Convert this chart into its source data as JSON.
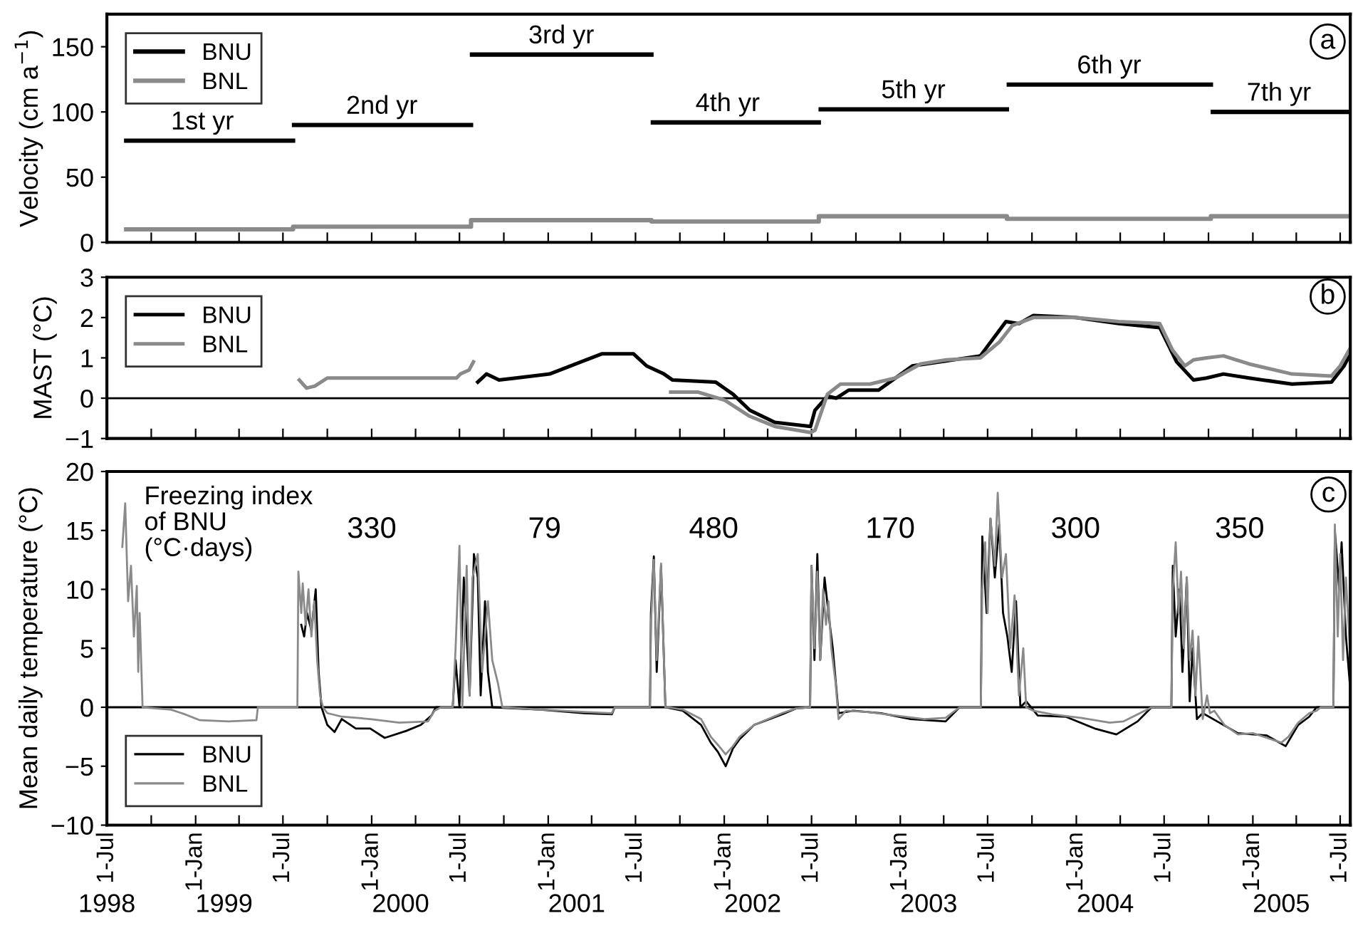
{
  "chart_data": [
    {
      "type": "line",
      "ylabel": "Velocity (cm a$^{−1}$)",
      "xlim": [
        "1998-07-01",
        "2005-07-22"
      ],
      "ylim": [
        0,
        175
      ],
      "yticks": [
        0,
        50,
        100,
        150
      ],
      "tick_labels": "y",
      "legend": "top left",
      "grid": false,
      "xticks": [
        {
          "value": "1998-07-01",
          "label": null
        },
        {
          "value": "1998-10-01",
          "label": null
        },
        {
          "value": "1999-01-01",
          "label": null
        },
        {
          "value": "1999-04-01",
          "label": null
        },
        {
          "value": "1999-07-01",
          "label": null
        },
        {
          "value": "1999-10-01",
          "label": null
        },
        {
          "value": "2000-01-01",
          "label": null
        },
        {
          "value": "2000-04-01",
          "label": null
        },
        {
          "value": "2000-07-01",
          "label": null
        },
        {
          "value": "2000-10-01",
          "label": null
        },
        {
          "value": "2001-01-01",
          "label": null
        },
        {
          "value": "2001-04-01",
          "label": null
        },
        {
          "value": "2001-07-01",
          "label": null
        },
        {
          "value": "2001-10-01",
          "label": null
        },
        {
          "value": "2002-01-01",
          "label": null
        },
        {
          "value": "2002-04-01",
          "label": null
        },
        {
          "value": "2002-07-01",
          "label": null
        },
        {
          "value": "2002-10-01",
          "label": null
        },
        {
          "value": "2003-01-01",
          "label": null
        },
        {
          "value": "2003-04-01",
          "label": null
        },
        {
          "value": "2003-07-01",
          "label": null
        },
        {
          "value": "2003-10-01",
          "label": null
        },
        {
          "value": "2004-01-01",
          "label": null
        },
        {
          "value": "2004-04-01",
          "label": null
        },
        {
          "value": "2004-07-01",
          "label": null
        },
        {
          "value": "2004-10-01",
          "label": null
        },
        {
          "value": "2005-01-01",
          "label": null
        },
        {
          "value": "2005-04-01",
          "label": null
        },
        {
          "value": "2005-07-01",
          "label": null
        }
      ],
      "series": [
        {
          "name": "BNU",
          "color": "#000000",
          "x": [
            "1998-08-10",
            "1999-07-22",
            "1999-07-23",
            "1999-07-24",
            "2000-07-25",
            "2000-07-26",
            "2000-07-27",
            "2001-08-03",
            "2001-08-04",
            "2001-08-06",
            "2002-07-16",
            "2002-07-18",
            "2002-07-20",
            "2003-08-10",
            "2003-08-12",
            "2003-08-14",
            "2004-10-06",
            "2004-10-08",
            "2004-10-10",
            "2005-07-22"
          ],
          "values": [
            78,
            78,
            null,
            90,
            90,
            null,
            144,
            144,
            null,
            92,
            92,
            null,
            102,
            102,
            null,
            121,
            121,
            null,
            100,
            100
          ]
        },
        {
          "name": "BNL",
          "color": "#8a8a8a",
          "x": [
            "1998-08-10",
            "1999-07-22",
            "1999-07-22",
            "2000-07-25",
            "2000-07-25",
            "2001-08-03",
            "2001-08-03",
            "2002-07-16",
            "2002-07-16",
            "2003-08-10",
            "2003-08-10",
            "2004-10-06",
            "2004-10-06",
            "2005-07-22"
          ],
          "values": [
            10,
            10,
            12,
            12,
            17,
            17,
            16,
            16,
            20,
            20,
            18,
            18,
            20,
            20
          ]
        }
      ],
      "annotations": [
        "a",
        {
          "text": "1st yr",
          "x": "1999-01-15",
          "y": 78
        },
        {
          "text": "2nd yr",
          "x": "2000-01-22",
          "y": 90
        },
        {
          "text": "3rd yr",
          "x": "2001-01-28",
          "y": 144
        },
        {
          "text": "4th yr",
          "x": "2002-01-08",
          "y": 92
        },
        {
          "text": "5th yr",
          "x": "2003-01-28",
          "y": 102
        },
        {
          "text": "6th yr",
          "x": "2004-03-09",
          "y": 121
        },
        {
          "text": "7th yr",
          "x": "2005-02-24",
          "y": 100
        }
      ]
    },
    {
      "type": "line",
      "ylabel": "MAST (°C)",
      "xlim": [
        "1998-07-01",
        "2005-07-22"
      ],
      "ylim": [
        -1,
        3
      ],
      "yticks": [
        {
          "value": -1,
          "label": "−1"
        },
        0,
        1,
        2,
        3
      ],
      "tick_labels": "y",
      "legend": "top left",
      "grid": false,
      "xticks": [
        {
          "value": "1998-07-01",
          "label": null
        },
        {
          "value": "1998-10-01",
          "label": null
        },
        {
          "value": "1999-01-01",
          "label": null
        },
        {
          "value": "1999-04-01",
          "label": null
        },
        {
          "value": "1999-07-01",
          "label": null
        },
        {
          "value": "1999-10-01",
          "label": null
        },
        {
          "value": "2000-01-01",
          "label": null
        },
        {
          "value": "2000-04-01",
          "label": null
        },
        {
          "value": "2000-07-01",
          "label": null
        },
        {
          "value": "2000-10-01",
          "label": null
        },
        {
          "value": "2001-01-01",
          "label": null
        },
        {
          "value": "2001-04-01",
          "label": null
        },
        {
          "value": "2001-07-01",
          "label": null
        },
        {
          "value": "2001-10-01",
          "label": null
        },
        {
          "value": "2002-01-01",
          "label": null
        },
        {
          "value": "2002-04-01",
          "label": null
        },
        {
          "value": "2002-07-01",
          "label": null
        },
        {
          "value": "2002-10-01",
          "label": null
        },
        {
          "value": "2003-01-01",
          "label": null
        },
        {
          "value": "2003-04-01",
          "label": null
        },
        {
          "value": "2003-07-01",
          "label": null
        },
        {
          "value": "2003-10-01",
          "label": null
        },
        {
          "value": "2004-01-01",
          "label": null
        },
        {
          "value": "2004-04-01",
          "label": null
        },
        {
          "value": "2004-07-01",
          "label": null
        },
        {
          "value": "2004-10-01",
          "label": null
        },
        {
          "value": "2005-01-01",
          "label": null
        },
        {
          "value": "2005-04-01",
          "label": null
        },
        {
          "value": "2005-07-01",
          "label": null
        }
      ],
      "ref_lines": [
        {
          "axis": "y",
          "value": 0,
          "color": "#000000"
        }
      ],
      "series": [
        {
          "name": "BNU",
          "color": "#000000",
          "x": [
            "2000-08-08",
            "2000-08-26",
            "2000-09-21",
            "2000-10-26",
            "2001-01-04",
            "2001-04-22",
            "2001-06-27",
            "2001-07-24",
            "2001-08-29",
            "2001-09-16",
            "2001-12-14",
            "2002-01-19",
            "2002-02-23",
            "2002-04-16",
            "2002-06-29",
            "2002-07-08",
            "2002-08-03",
            "2002-08-21",
            "2002-09-16",
            "2002-11-17",
            "2003-01-26",
            "2003-06-16",
            "2003-08-08",
            "2003-09-04",
            "2003-10-04",
            "2003-12-31",
            "2004-03-29",
            "2004-06-22",
            "2004-07-27",
            "2004-08-31",
            "2004-09-27",
            "2004-11-01",
            "2004-12-24",
            "2005-03-23",
            "2005-06-13",
            "2005-07-09",
            "2005-07-20"
          ],
          "values": [
            0.4,
            0.6,
            0.45,
            0.5,
            0.6,
            1.1,
            1.1,
            0.8,
            0.6,
            0.45,
            0.4,
            0.1,
            -0.3,
            -0.6,
            -0.7,
            -0.3,
            0.05,
            0.0,
            0.2,
            0.2,
            0.8,
            1.05,
            1.9,
            1.85,
            2.05,
            2.0,
            1.85,
            1.75,
            0.9,
            0.45,
            0.5,
            0.6,
            0.5,
            0.35,
            0.4,
            0.8,
            1.05
          ]
        },
        {
          "name": "BNL",
          "color": "#8a8a8a",
          "x": [
            "1999-08-04",
            "1999-08-19",
            "1999-09-05",
            "1999-10-01",
            "1999-11-05",
            "2000-06-25",
            "2000-07-03",
            "2000-07-21",
            "2000-07-30",
            "2000-08-15",
            "2001-09-12",
            "2001-11-08",
            "2002-01-02",
            "2002-02-23",
            "2002-04-16",
            "2002-06-29",
            "2002-07-08",
            "2002-08-03",
            "2002-08-30",
            "2002-10-30",
            "2002-12-22",
            "2003-02-12",
            "2003-04-06",
            "2003-06-16",
            "2003-07-26",
            "2003-08-21",
            "2003-10-04",
            "2003-12-31",
            "2004-03-29",
            "2004-06-22",
            "2004-07-18",
            "2004-08-13",
            "2004-08-31",
            "2004-09-27",
            "2004-11-01",
            "2004-12-24",
            "2005-03-23",
            "2005-06-13",
            "2005-07-01",
            "2005-07-20"
          ],
          "values": [
            0.45,
            0.25,
            0.3,
            0.5,
            0.5,
            0.5,
            0.6,
            0.7,
            0.9,
            null,
            0.15,
            0.15,
            -0.05,
            -0.45,
            -0.7,
            -0.85,
            -0.8,
            0.1,
            0.35,
            0.35,
            0.5,
            0.85,
            0.95,
            1.0,
            1.4,
            1.8,
            2.0,
            2.0,
            1.9,
            1.85,
            1.2,
            0.8,
            0.95,
            1.0,
            1.05,
            0.85,
            0.6,
            0.55,
            0.8,
            1.2
          ]
        }
      ],
      "annotations": [
        "b"
      ]
    },
    {
      "type": "line",
      "ylabel": "Mean daily temperature (°C)",
      "xlim": [
        "1998-07-01",
        "2005-07-22"
      ],
      "ylim": [
        -10,
        20
      ],
      "yticks": [
        {
          "value": -10,
          "label": "−10"
        },
        {
          "value": -5,
          "label": "−5"
        },
        0,
        5,
        10,
        15,
        20
      ],
      "legend": "bottom left",
      "grid": false,
      "xticks": [
        {
          "value": "1998-07-01",
          "label": "1-Jul"
        },
        {
          "value": "1998-10-01",
          "label": null
        },
        {
          "value": "1999-01-01",
          "label": "1-Jan"
        },
        {
          "value": "1999-04-01",
          "label": null
        },
        {
          "value": "1999-07-01",
          "label": "1-Jul"
        },
        {
          "value": "1999-10-01",
          "label": null
        },
        {
          "value": "2000-01-01",
          "label": "1-Jan"
        },
        {
          "value": "2000-04-01",
          "label": null
        },
        {
          "value": "2000-07-01",
          "label": "1-Jul"
        },
        {
          "value": "2000-10-01",
          "label": null
        },
        {
          "value": "2001-01-01",
          "label": "1-Jan"
        },
        {
          "value": "2001-04-01",
          "label": null
        },
        {
          "value": "2001-07-01",
          "label": "1-Jul"
        },
        {
          "value": "2001-10-01",
          "label": null
        },
        {
          "value": "2002-01-01",
          "label": "1-Jan"
        },
        {
          "value": "2002-04-01",
          "label": null
        },
        {
          "value": "2002-07-01",
          "label": "1-Jul"
        },
        {
          "value": "2002-10-01",
          "label": null
        },
        {
          "value": "2003-01-01",
          "label": "1-Jan"
        },
        {
          "value": "2003-04-01",
          "label": null
        },
        {
          "value": "2003-07-01",
          "label": "1-Jul"
        },
        {
          "value": "2003-10-01",
          "label": null
        },
        {
          "value": "2004-01-01",
          "label": "1-Jan"
        },
        {
          "value": "2004-04-01",
          "label": null
        },
        {
          "value": "2004-07-01",
          "label": "1-Jul"
        },
        {
          "value": "2004-10-01",
          "label": null
        },
        {
          "value": "2005-01-01",
          "label": "1-Jan"
        },
        {
          "value": "2005-04-01",
          "label": null
        },
        {
          "value": "2005-07-01",
          "label": "1-Jul"
        }
      ],
      "x2lim": [
        "1998-07-01",
        "2005-07-22"
      ],
      "x2ticks": [
        {
          "value": "1998-07-01",
          "label": "1998"
        },
        {
          "value": "1999-03-01",
          "label": "1999"
        },
        {
          "value": "2000-03-01",
          "label": "2000"
        },
        {
          "value": "2001-03-01",
          "label": "2001"
        },
        {
          "value": "2002-03-01",
          "label": "2002"
        },
        {
          "value": "2003-03-01",
          "label": "2003"
        },
        {
          "value": "2004-03-01",
          "label": "2004"
        },
        {
          "value": "2005-03-01",
          "label": "2005"
        }
      ],
      "ref_lines": [
        {
          "axis": "y",
          "value": 0,
          "color": "#000000"
        }
      ],
      "series": [
        {
          "name": "BNU",
          "color": "#000000",
          "x": [
            "1999-08-08",
            "1999-08-14",
            "1999-08-20",
            "1999-08-29",
            "1999-09-07",
            "1999-09-13",
            "1999-09-19",
            "1999-10-01",
            "1999-10-16",
            "1999-10-31",
            "1999-11-29",
            "1999-12-29",
            "2000-01-28",
            "2000-03-13",
            "2000-04-12",
            "2000-05-04",
            "2000-05-13",
            "2000-06-17",
            "2000-06-23",
            "2000-07-01",
            "2000-07-10",
            "2000-07-22",
            "2000-07-31",
            "2000-08-08",
            "2000-08-14",
            "2000-08-23",
            "2000-08-29",
            "2000-09-07",
            "2000-12-16",
            "2001-03-16",
            "2001-05-13",
            "2001-05-19",
            "2001-07-31",
            "2001-08-02",
            "2001-08-08",
            "2001-08-14",
            "2001-08-23",
            "2001-09-01",
            "2001-10-07",
            "2001-11-14",
            "2001-12-04",
            "2001-12-19",
            "2002-01-04",
            "2002-01-19",
            "2002-02-02",
            "2002-03-04",
            "2002-05-01",
            "2002-05-30",
            "2002-06-28",
            "2002-07-01",
            "2002-07-07",
            "2002-07-13",
            "2002-07-19",
            "2002-07-28",
            "2002-08-05",
            "2002-08-14",
            "2002-08-26",
            "2002-09-25",
            "2002-11-22",
            "2003-01-22",
            "2003-04-05",
            "2003-05-04",
            "2003-06-17",
            "2003-06-20",
            "2003-06-29",
            "2003-07-07",
            "2003-07-16",
            "2003-07-25",
            "2003-08-02",
            "2003-08-11",
            "2003-08-20",
            "2003-08-29",
            "2003-09-07",
            "2003-09-19",
            "2003-10-13",
            "2003-12-10",
            "2004-02-08",
            "2004-03-24",
            "2004-05-07",
            "2004-06-05",
            "2004-07-16",
            "2004-07-19",
            "2004-07-25",
            "2004-08-02",
            "2004-08-08",
            "2004-08-17",
            "2004-08-23",
            "2004-08-29",
            "2004-09-07",
            "2004-09-19",
            "2004-10-19",
            "2004-12-01",
            "2005-01-30",
            "2005-03-10",
            "2005-04-05",
            "2005-04-28",
            "2005-05-13",
            "2005-06-17",
            "2005-06-20",
            "2005-06-29",
            "2005-07-04",
            "2005-07-13",
            "2005-07-21"
          ],
          "values": [
            7,
            6,
            8,
            6.5,
            10,
            3,
            0,
            -1.5,
            -2.1,
            -1.0,
            -1.8,
            -1.8,
            -2.6,
            -2.0,
            -1.5,
            -0.7,
            0,
            0,
            4,
            0,
            11,
            1,
            13,
            11,
            1,
            9,
            3,
            0,
            -0.2,
            -0.5,
            -0.6,
            0,
            0,
            8,
            12.8,
            3,
            12,
            0,
            -0.3,
            -1.5,
            -3,
            -3.8,
            -5,
            -3.5,
            -2.7,
            -1.5,
            -0.6,
            -0.1,
            0,
            12,
            4,
            13,
            4,
            11,
            8,
            5,
            -0.5,
            -0.3,
            -0.5,
            -1.0,
            -1.2,
            0,
            0,
            14.5,
            8,
            16,
            11,
            15.5,
            8,
            6,
            3,
            9,
            0,
            0.5,
            -0.7,
            -0.8,
            -1.8,
            -2.3,
            -1.2,
            0,
            0,
            12,
            6,
            10,
            3,
            11,
            0.5,
            5,
            -1,
            -0.5,
            -1.2,
            -2.2,
            -2.4,
            -3.3,
            -1.5,
            -0.8,
            0,
            0,
            15,
            10,
            14,
            6,
            2
          ]
        },
        {
          "name": "BNL",
          "color": "#8a8a8a",
          "x": [
            "1998-08-02",
            "1998-08-08",
            "1998-08-14",
            "1998-08-20",
            "1998-08-26",
            "1998-09-01",
            "1998-09-04",
            "1998-09-07",
            "1998-09-13",
            "1998-11-11",
            "1998-12-10",
            "1999-01-10",
            "1999-03-10",
            "1999-05-07",
            "1999-05-10",
            "1999-07-31",
            "1999-08-02",
            "1999-08-08",
            "1999-08-11",
            "1999-08-17",
            "1999-08-23",
            "1999-08-29",
            "1999-09-04",
            "1999-09-10",
            "1999-09-16",
            "1999-09-22",
            "1999-10-01",
            "1999-10-31",
            "1999-12-29",
            "2000-02-27",
            "2000-04-27",
            "2000-05-10",
            "2000-05-24",
            "2000-06-17",
            "2000-06-23",
            "2000-07-01",
            "2000-07-07",
            "2000-07-16",
            "2000-07-22",
            "2000-07-28",
            "2000-08-08",
            "2000-08-17",
            "2000-08-29",
            "2000-09-07",
            "2000-09-19",
            "2000-09-28",
            "2000-12-16",
            "2001-03-16",
            "2001-05-13",
            "2001-05-19",
            "2001-07-31",
            "2001-08-02",
            "2001-08-08",
            "2001-08-14",
            "2001-08-23",
            "2001-09-01",
            "2001-09-07",
            "2001-10-07",
            "2001-11-14",
            "2001-12-04",
            "2001-12-19",
            "2002-01-04",
            "2002-01-19",
            "2002-02-02",
            "2002-03-04",
            "2002-05-01",
            "2002-05-30",
            "2002-06-28",
            "2002-07-01",
            "2002-07-07",
            "2002-07-13",
            "2002-07-19",
            "2002-07-25",
            "2002-07-31",
            "2002-08-05",
            "2002-08-11",
            "2002-08-20",
            "2002-08-26",
            "2002-09-10",
            "2002-10-25",
            "2002-12-22",
            "2003-02-20",
            "2003-04-05",
            "2003-05-04",
            "2003-06-17",
            "2003-06-20",
            "2003-06-26",
            "2003-07-01",
            "2003-07-07",
            "2003-07-16",
            "2003-07-22",
            "2003-07-31",
            "2003-08-08",
            "2003-08-17",
            "2003-08-26",
            "2003-09-04",
            "2003-09-13",
            "2003-09-19",
            "2003-10-04",
            "2003-11-11",
            "2004-01-10",
            "2004-03-10",
            "2004-04-08",
            "2004-05-07",
            "2004-06-05",
            "2004-07-16",
            "2004-07-19",
            "2004-07-25",
            "2004-07-31",
            "2004-08-05",
            "2004-08-11",
            "2004-08-17",
            "2004-08-23",
            "2004-08-29",
            "2004-09-04",
            "2004-09-10",
            "2004-09-19",
            "2004-09-28",
            "2004-10-04",
            "2004-10-13",
            "2004-11-03",
            "2004-12-01",
            "2005-01-01",
            "2005-01-30",
            "2005-03-01",
            "2005-03-16",
            "2005-04-05",
            "2005-04-28",
            "2005-05-13",
            "2005-05-22",
            "2005-06-17",
            "2005-06-20",
            "2005-06-26",
            "2005-07-01",
            "2005-07-07",
            "2005-07-13",
            "2005-07-21"
          ],
          "values": [
            13.6,
            17.3,
            9,
            12,
            6,
            10.3,
            3,
            8,
            0,
            -0.2,
            -0.6,
            -1.1,
            -1.2,
            -1.1,
            0,
            0,
            11.5,
            8,
            10.5,
            7,
            10,
            6,
            9,
            4,
            1,
            0,
            -0.5,
            -0.8,
            -1.0,
            -1.3,
            -1.2,
            -0.3,
            0,
            0,
            5,
            13.7,
            0,
            12,
            1,
            11,
            13,
            3,
            9,
            4,
            2,
            0,
            -0.2,
            -0.4,
            -0.5,
            0,
            0,
            7,
            12.5,
            4,
            12.2,
            0,
            0,
            -0.2,
            -1,
            -2.5,
            -3.2,
            -4.0,
            -3.3,
            -2.5,
            -1.5,
            -0.5,
            -0.1,
            0,
            12,
            5,
            11.5,
            4,
            10,
            7,
            9,
            5,
            2,
            -1,
            -0.3,
            -0.4,
            -0.7,
            -1.0,
            -0.9,
            0,
            0,
            10,
            14,
            8,
            16,
            12,
            18.2,
            11,
            13,
            5,
            9.5,
            1,
            5,
            0,
            -0.3,
            -0.6,
            -0.9,
            -1.3,
            -1.2,
            -0.6,
            0,
            0,
            10,
            14,
            8,
            11.5,
            5,
            11,
            4,
            6.5,
            1,
            6,
            -1,
            1,
            -0.5,
            -0.3,
            -1.5,
            -2.3,
            -2.2,
            -2.6,
            -3.0,
            -2.5,
            -1.3,
            -0.5,
            -0.3,
            0,
            0,
            15.5,
            6,
            13,
            4,
            11,
            5
          ]
        }
      ],
      "annotations": [
        "c",
        "Freezing index\nof BNU\n(°C·days)",
        "330",
        "79",
        "480",
        "170",
        "300",
        "350"
      ]
    }
  ]
}
